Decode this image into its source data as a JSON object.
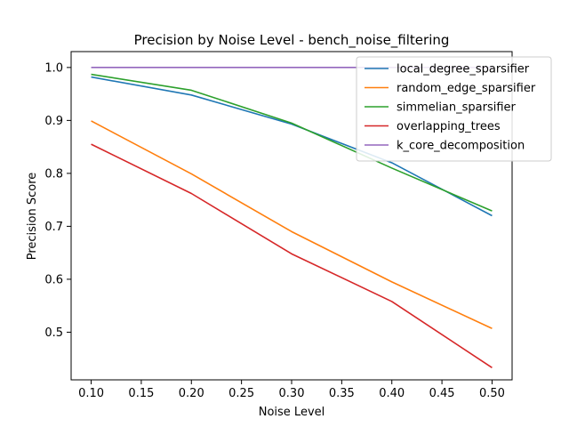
{
  "chart_data": {
    "type": "line",
    "title": "Precision by Noise Level - bench_noise_filtering",
    "xlabel": "Noise Level",
    "ylabel": "Precision Score",
    "x": [
      0.1,
      0.2,
      0.3,
      0.4,
      0.5
    ],
    "xlim": [
      0.08,
      0.52
    ],
    "ylim": [
      0.41,
      1.03
    ],
    "xticks": [
      "0.10",
      "0.15",
      "0.20",
      "0.25",
      "0.30",
      "0.35",
      "0.40",
      "0.45",
      "0.50"
    ],
    "yticks": [
      "0.5",
      "0.6",
      "0.7",
      "0.8",
      "0.9",
      "1.0"
    ],
    "grid": false,
    "legend_position": "top-right",
    "series": [
      {
        "name": "local_degree_sparsifier",
        "color": "#1f77b4",
        "values": [
          0.982,
          0.948,
          0.893,
          0.82,
          0.72
        ]
      },
      {
        "name": "random_edge_sparsifier",
        "color": "#ff7f0e",
        "values": [
          0.899,
          0.799,
          0.69,
          0.595,
          0.507
        ]
      },
      {
        "name": "simmelian_sparsifier",
        "color": "#2ca02c",
        "values": [
          0.987,
          0.957,
          0.895,
          0.81,
          0.729
        ]
      },
      {
        "name": "overlapping_trees",
        "color": "#d62728",
        "values": [
          0.855,
          0.762,
          0.648,
          0.558,
          0.433
        ]
      },
      {
        "name": "k_core_decomposition",
        "color": "#9467bd",
        "values": [
          1.0,
          1.0,
          1.0,
          1.0,
          1.0
        ]
      }
    ]
  }
}
